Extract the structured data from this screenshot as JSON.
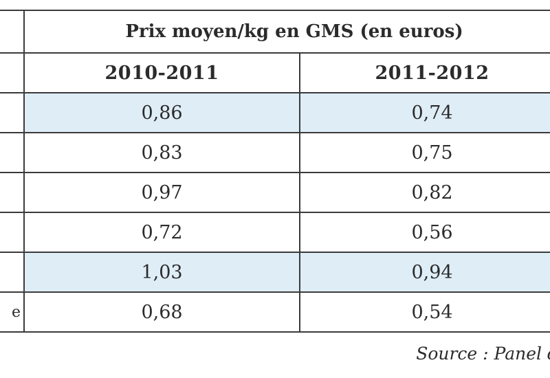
{
  "table": {
    "title": "Prix moyen/kg en GMS (en euros)",
    "columns": [
      "2010-2011",
      "2011-2012"
    ],
    "rows": [
      {
        "label": "",
        "v1": "0,86",
        "v2": "0,74",
        "shaded": true
      },
      {
        "label": "",
        "v1": "0,83",
        "v2": "0,75",
        "shaded": false
      },
      {
        "label": "",
        "v1": "0,97",
        "v2": "0,82",
        "shaded": false
      },
      {
        "label": "",
        "v1": "0,72",
        "v2": "0,56",
        "shaded": false
      },
      {
        "label": "",
        "v1": "1,03",
        "v2": "0,94",
        "shaded": true
      },
      {
        "label": "e",
        "v1": "0,68",
        "v2": "0,54",
        "shaded": false
      }
    ]
  },
  "source": "Source : Panel d",
  "colors": {
    "shade": "#dfedf7",
    "border": "#3a3a3a",
    "text": "#2b2b2b"
  }
}
